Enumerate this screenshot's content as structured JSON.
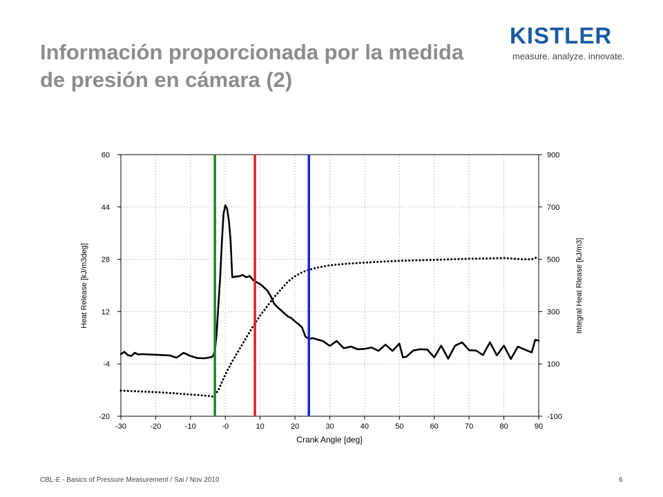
{
  "slide": {
    "title": "Información proporcionada por la medida de presión en cámara (2)",
    "footer": "CBL-E - Basics of Pressure Measurement / Sai / Nov 2010",
    "page_number": "6"
  },
  "logo": {
    "brand": "KISTLER",
    "tagline": "measure. analyze. innovate.",
    "color": "#1a5aa0"
  },
  "chart_data": {
    "type": "line",
    "xlabel": "Crank Angle [deg]",
    "ylabel": "Heat Release [kJ/m3deg]",
    "y2label": "Integral Heat Rlease [kJ/m3]",
    "xlim": [
      -30,
      90
    ],
    "ylim": [
      -20,
      60
    ],
    "y2lim": [
      -100,
      900
    ],
    "x_ticks": [
      "-30",
      "-20",
      "-10",
      "-0",
      "10",
      "20",
      "30",
      "40",
      "50",
      "60",
      "70",
      "80",
      "90"
    ],
    "x_tick_values": [
      -30,
      -20,
      -10,
      0,
      10,
      20,
      30,
      40,
      50,
      60,
      70,
      80,
      90
    ],
    "y_ticks": [
      "60",
      "44",
      "28",
      "12",
      "-4",
      "-20"
    ],
    "y_tick_values": [
      60,
      44,
      28,
      12,
      -4,
      -20
    ],
    "y2_ticks": [
      "900",
      "700",
      "500",
      "300",
      "100",
      "-100"
    ],
    "y2_tick_values": [
      900,
      700,
      500,
      300,
      100,
      -100
    ],
    "grid": true,
    "series": [
      {
        "axis": "left",
        "style": "solid",
        "color": "#000000",
        "x": [
          -30,
          -29,
          -28,
          -27,
          -26,
          -25,
          -24,
          -22,
          -20,
          -18,
          -16,
          -14,
          -12,
          -10,
          -8,
          -6,
          -4,
          -3.5,
          -3,
          -2.5,
          -2,
          -1.5,
          -1,
          -0.5,
          0,
          0.5,
          1,
          1.5,
          2,
          3,
          4,
          5,
          6,
          7,
          8,
          9,
          10,
          11,
          12,
          13,
          14,
          15,
          16,
          17,
          18,
          19,
          20,
          21,
          22,
          23,
          24,
          25,
          26,
          28,
          30,
          32,
          34,
          36,
          38,
          40,
          42,
          44,
          46,
          48,
          50,
          51,
          52,
          54,
          56,
          58,
          60,
          62,
          64,
          66,
          68,
          70,
          72,
          74,
          76,
          78,
          80,
          82,
          84,
          86,
          88,
          89,
          90
        ],
        "y": [
          -1,
          -0.3,
          -1.3,
          -1.6,
          -0.6,
          -1.1,
          -1,
          -1.1,
          -1.2,
          -1.3,
          -1.4,
          -2.1,
          -0.6,
          -1.6,
          -2.2,
          -2.3,
          -1.9,
          -1.6,
          0,
          5,
          14,
          22,
          33,
          42,
          44.5,
          43.5,
          40,
          34,
          22.5,
          22.7,
          22.8,
          23.2,
          22.5,
          22.9,
          21.6,
          21,
          20.4,
          19.5,
          18.5,
          16.8,
          14.5,
          13.3,
          12.4,
          11.4,
          10.5,
          10,
          9,
          8.2,
          7.2,
          4.4,
          3.6,
          3.9,
          3.6,
          3,
          1.5,
          3,
          0.8,
          1.3,
          0.5,
          0.6,
          1,
          0,
          1.9,
          0,
          2.2,
          -2,
          -1.8,
          0.1,
          0.5,
          0.4,
          -2,
          1.6,
          -2.4,
          1.6,
          2.6,
          0.2,
          0.1,
          -1.3,
          2.6,
          -1.4,
          1.6,
          -2.5,
          1.3,
          0.4,
          -0.5,
          3.4,
          3.1
        ]
      },
      {
        "axis": "right",
        "style": "dotted",
        "color": "#000000",
        "x": [
          -30,
          -25,
          -20,
          -15,
          -10,
          -5,
          -3.5,
          -3,
          -2,
          -1,
          0,
          2,
          4,
          6,
          8,
          10,
          12,
          14,
          16,
          18,
          20,
          22,
          24,
          26,
          28,
          30,
          35,
          40,
          45,
          50,
          55,
          60,
          65,
          70,
          75,
          80,
          85,
          88,
          90
        ],
        "y": [
          -2,
          -5,
          -8,
          -12,
          -17,
          -22,
          -25,
          -20,
          0,
          30,
          60,
          110,
          155,
          200,
          245,
          285,
          320,
          355,
          385,
          415,
          435,
          450,
          460,
          467,
          472,
          477,
          483,
          487,
          491,
          494,
          496,
          498,
          500,
          502,
          503,
          505,
          500,
          500,
          510
        ]
      }
    ],
    "vertical_markers": [
      {
        "x": -3,
        "color": "#1a8c1a"
      },
      {
        "x": 8.5,
        "color": "#e02020"
      },
      {
        "x": 24,
        "color": "#1428e0"
      }
    ]
  }
}
